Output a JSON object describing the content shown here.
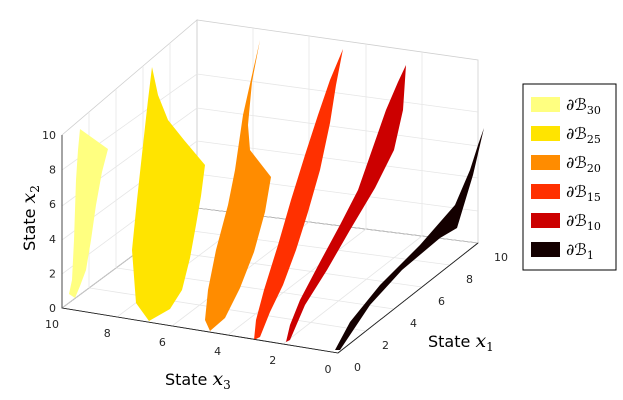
{
  "chart_data": {
    "type": "surface-3d",
    "axes": {
      "x1": {
        "label": "State ",
        "var": "x",
        "sub": "1",
        "range": [
          0,
          10
        ],
        "ticks": [
          "0",
          "2",
          "4",
          "6",
          "8",
          "10"
        ]
      },
      "x2": {
        "label": "State ",
        "var": "x",
        "sub": "2",
        "range": [
          0,
          10
        ],
        "ticks": [
          "0",
          "2",
          "4",
          "6",
          "8",
          "10"
        ]
      },
      "x3": {
        "label": "State ",
        "var": "x",
        "sub": "3",
        "range": [
          0,
          10
        ],
        "ticks": [
          "0",
          "2",
          "4",
          "6",
          "8",
          "10"
        ]
      }
    },
    "grid": true,
    "legend_position": "right",
    "series": [
      {
        "name": "∂ℬ",
        "sub": "30",
        "color": "#ffff80"
      },
      {
        "name": "∂ℬ",
        "sub": "25",
        "color": "#ffe400"
      },
      {
        "name": "∂ℬ",
        "sub": "20",
        "color": "#ff8c00"
      },
      {
        "name": "∂ℬ",
        "sub": "15",
        "color": "#ff3000"
      },
      {
        "name": "∂ℬ",
        "sub": "10",
        "color": "#cc0000"
      },
      {
        "name": "∂ℬ",
        "sub": "1",
        "color": "#140000"
      }
    ]
  }
}
